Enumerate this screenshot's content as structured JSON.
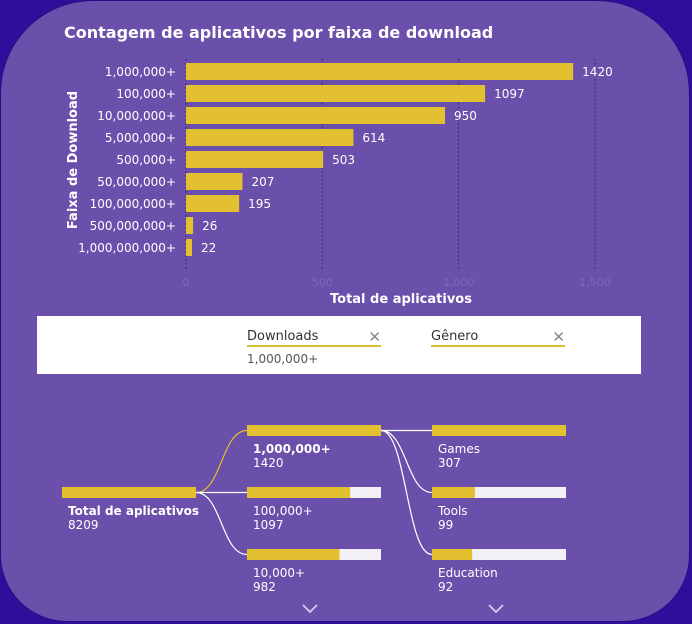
{
  "colors": {
    "bar": "#e3c02f",
    "card": "#6a4fab",
    "outer": "#2d0f9c",
    "bar_track": "#f2f0f5",
    "text": "#ffffff"
  },
  "chart_data": {
    "type": "bar",
    "orientation": "horizontal",
    "title": "Contagem de aplicativos por faixa de download",
    "xlabel": "Total de aplicativos",
    "ylabel": "Faixa de Download",
    "categories": [
      "1,000,000+",
      "100,000+",
      "10,000,000+",
      "5,000,000+",
      "500,000+",
      "50,000,000+",
      "100,000,000+",
      "500,000,000+",
      "1,000,000,000+"
    ],
    "values": [
      1420,
      1097,
      950,
      614,
      503,
      207,
      195,
      26,
      22
    ],
    "xlim": [
      0,
      1500
    ],
    "xticks": [
      "0",
      "500",
      "1,000",
      "1,500"
    ],
    "grid": "vertical dotted"
  },
  "slicers": {
    "downloads": {
      "label": "Downloads",
      "value": "1,000,000+",
      "clear_icon": "close-icon"
    },
    "genero": {
      "label": "Gênero",
      "value": "",
      "clear_icon": "close-icon"
    }
  },
  "decomposition_tree": {
    "root": {
      "label": "Total de aplicativos",
      "value": "8209"
    },
    "level1": [
      {
        "label": "1,000,000+",
        "value": "1420",
        "fraction": 1.0,
        "selected": true
      },
      {
        "label": "100,000+",
        "value": "1097",
        "fraction": 0.77,
        "selected": false
      },
      {
        "label": "10,000+",
        "value": "982",
        "fraction": 0.69,
        "selected": false
      }
    ],
    "level2": [
      {
        "label": "Games",
        "value": "307",
        "fraction": 1.0
      },
      {
        "label": "Tools",
        "value": "99",
        "fraction": 0.32
      },
      {
        "label": "Education",
        "value": "92",
        "fraction": 0.3
      }
    ],
    "expand_icon": "chevron-down-icon"
  }
}
